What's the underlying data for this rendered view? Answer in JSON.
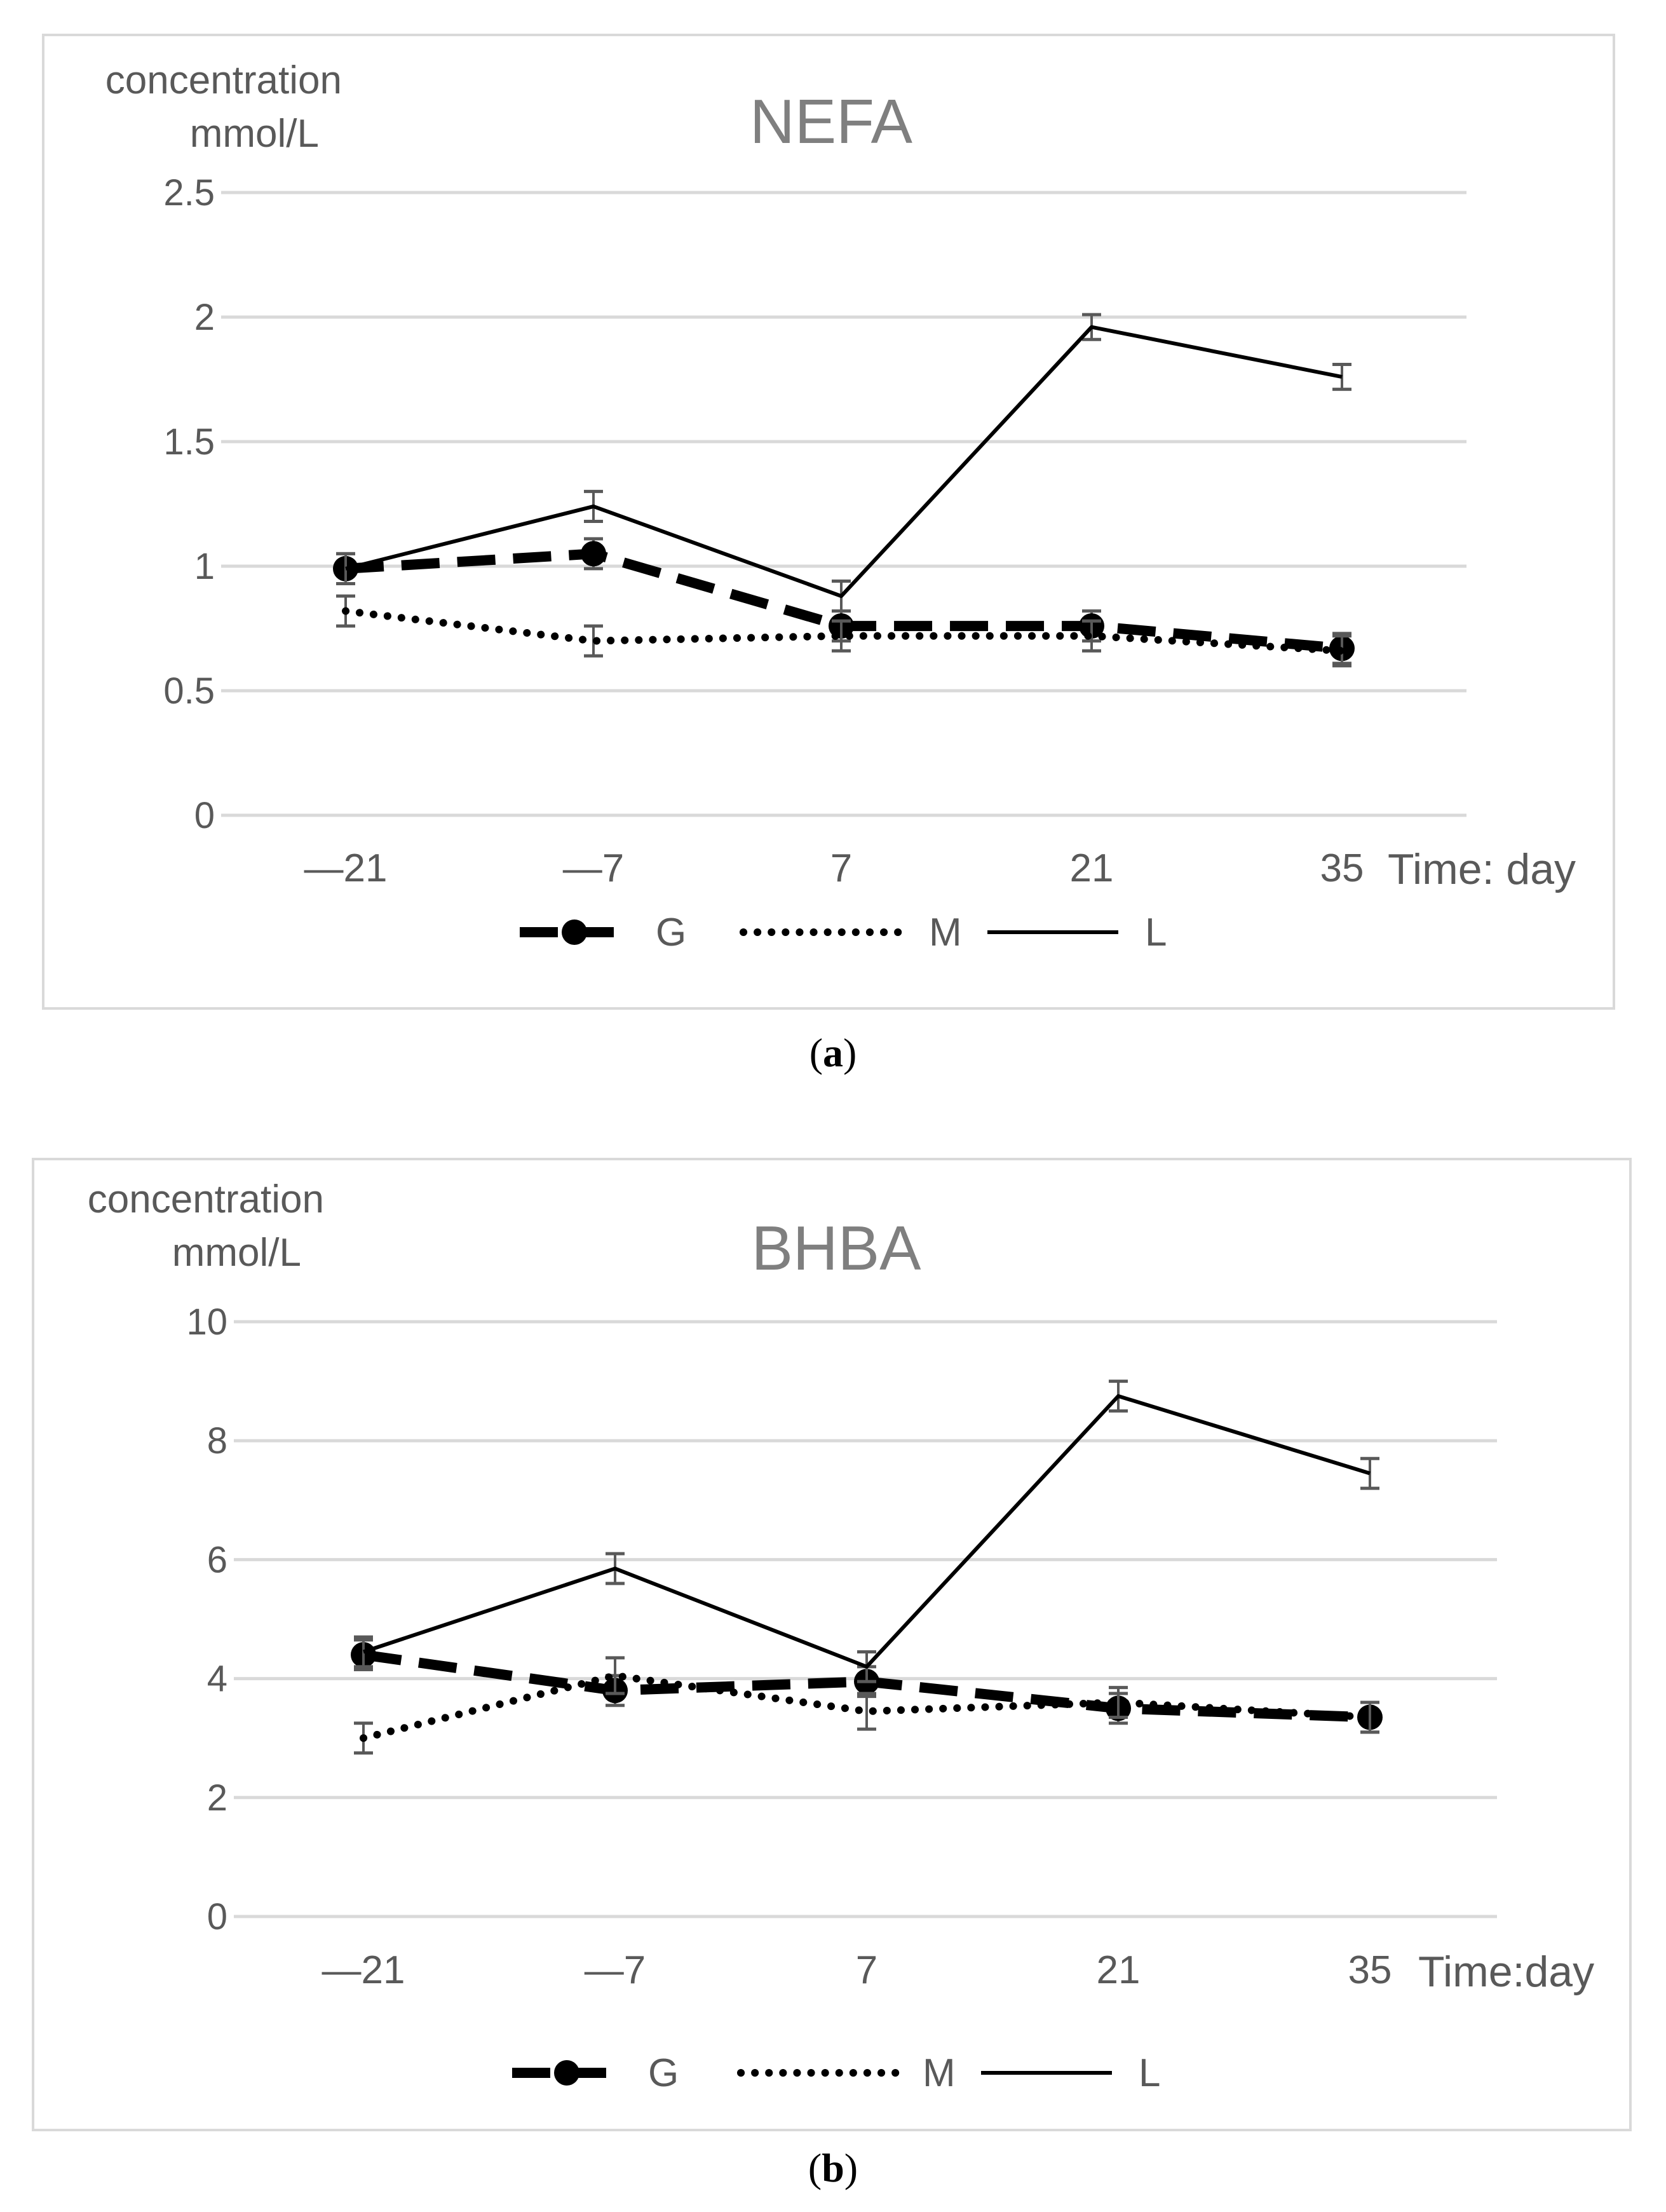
{
  "figures": [
    {
      "id": "a",
      "caption_letter": "a",
      "y_title_line1": "concentration",
      "y_title_line2": "mmol/L",
      "x_title": "Time: day"
    },
    {
      "id": "b",
      "caption_letter": "b",
      "y_title_line1": "concentration",
      "y_title_line2": "mmol/L",
      "x_title": "Time:day"
    }
  ],
  "colors": {
    "grid": "#d9d9d9",
    "line": "#000000",
    "errorbar": "#595959",
    "text": "#595959",
    "title": "#7f7f7f"
  },
  "chart_data": [
    {
      "type": "line",
      "title": "NEFA",
      "xlabel": "Time: day",
      "ylabel": "concentration mmol/L",
      "categories": [
        "—21",
        "—7",
        "7",
        "21",
        "35"
      ],
      "ylim": [
        0,
        2.5
      ],
      "yticks": [
        0,
        0.5,
        1,
        1.5,
        2,
        2.5
      ],
      "ytick_labels": [
        "0",
        "0.5",
        "1",
        "1.5",
        "2",
        "2.5"
      ],
      "grid": true,
      "legend_position": "bottom",
      "series": [
        {
          "name": "G",
          "style": "dashed-marker",
          "values": [
            0.99,
            1.05,
            0.76,
            0.76,
            0.67
          ],
          "errors": [
            0.06,
            0.06,
            0.06,
            0.06,
            0.06
          ]
        },
        {
          "name": "M",
          "style": "dotted",
          "values": [
            0.82,
            0.7,
            0.72,
            0.72,
            0.66
          ],
          "errors": [
            0.06,
            0.06,
            0.06,
            0.06,
            0.06
          ]
        },
        {
          "name": "L",
          "style": "solid",
          "values": [
            0.99,
            1.24,
            0.88,
            1.96,
            1.76
          ],
          "errors": [
            0.06,
            0.06,
            0.06,
            0.05,
            0.05
          ]
        }
      ]
    },
    {
      "type": "line",
      "title": "BHBA",
      "xlabel": "Time:day",
      "ylabel": "concentration mmol/L",
      "categories": [
        "—21",
        "—7",
        "7",
        "21",
        "35"
      ],
      "ylim": [
        0,
        10
      ],
      "yticks": [
        0,
        2,
        4,
        6,
        8,
        10
      ],
      "ytick_labels": [
        "0",
        "2",
        "4",
        "6",
        "8",
        "10"
      ],
      "grid": true,
      "legend_position": "bottom",
      "series": [
        {
          "name": "G",
          "style": "dashed-marker",
          "values": [
            4.4,
            3.8,
            3.95,
            3.5,
            3.35
          ],
          "errors": [
            0.25,
            0.25,
            0.25,
            0.25,
            0.25
          ]
        },
        {
          "name": "M",
          "style": "dotted",
          "values": [
            3.0,
            4.05,
            3.45,
            3.6,
            3.35
          ],
          "errors": [
            0.25,
            0.3,
            0.3,
            0.25,
            0.25
          ]
        },
        {
          "name": "L",
          "style": "solid",
          "values": [
            4.45,
            5.85,
            4.2,
            8.75,
            7.45
          ],
          "errors": [
            0.25,
            0.25,
            0.25,
            0.25,
            0.25
          ]
        }
      ]
    }
  ]
}
